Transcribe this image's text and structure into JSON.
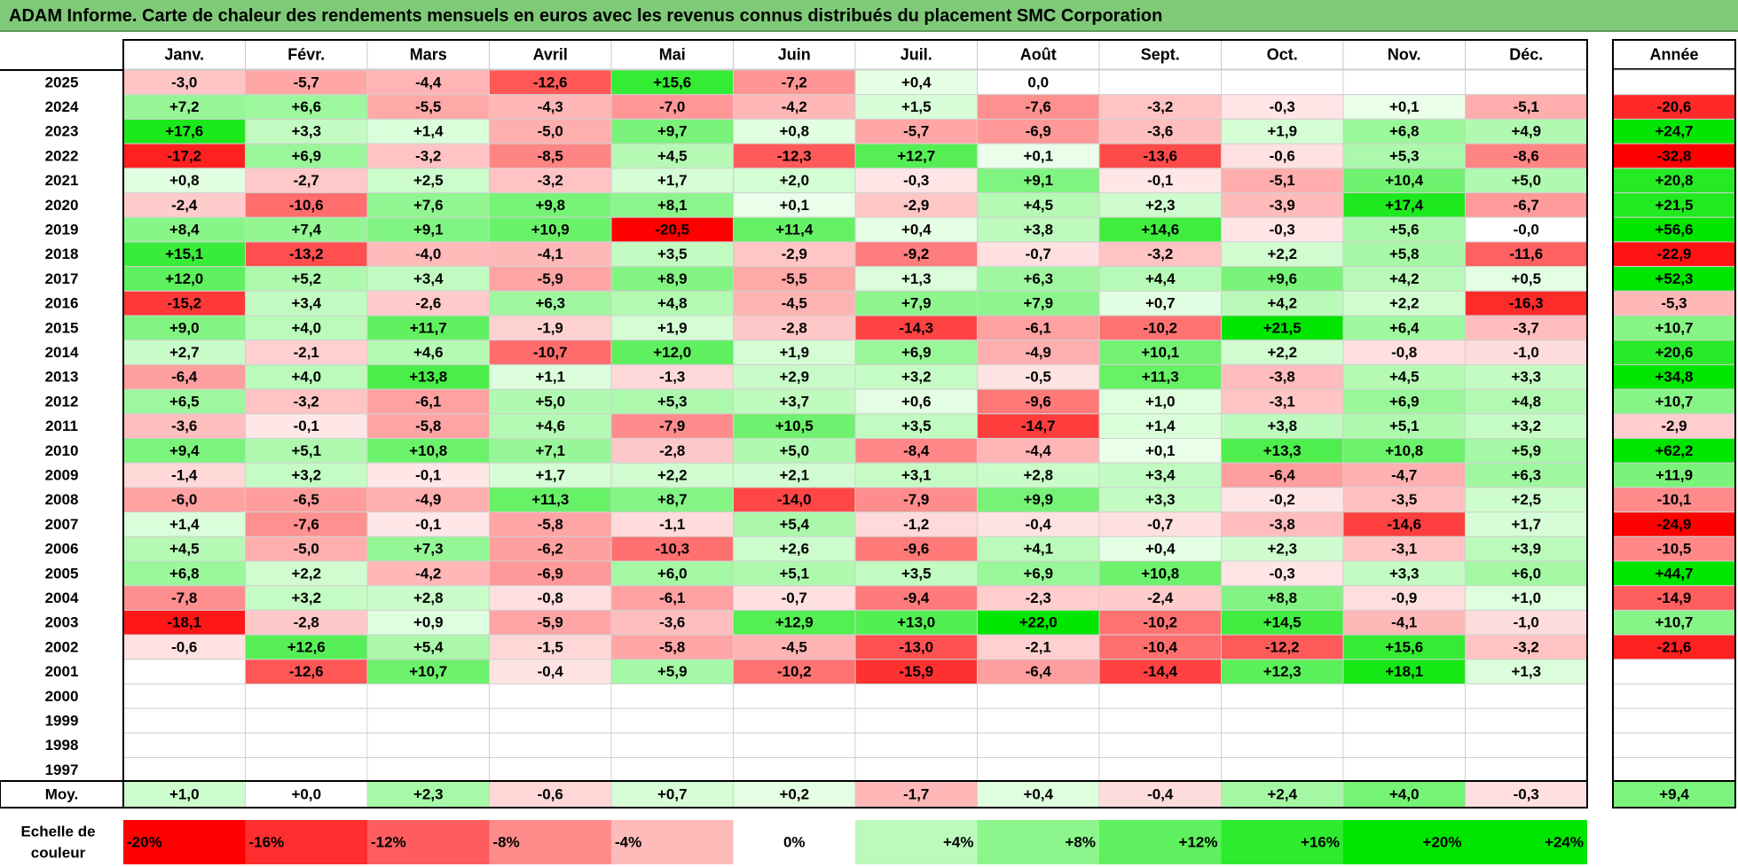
{
  "title": "ADAM Informe. Carte de chaleur des rendements mensuels en euros avec les revenus connus distribués du placement SMC Corporation",
  "year_header": "Année",
  "avg_label": "Moy.",
  "scale_label": "Echelle de couleur",
  "colors": {
    "neg_max": "#ff0000",
    "pos_max": "#00e600",
    "neutral": "#ffffff",
    "title_bg": "#7fca78"
  },
  "scale": [
    {
      "label": "-20%",
      "value": -20
    },
    {
      "label": "-16%",
      "value": -16
    },
    {
      "label": "-12%",
      "value": -12
    },
    {
      "label": "-8%",
      "value": -8
    },
    {
      "label": "-4%",
      "value": -4
    },
    {
      "label": "0%",
      "value": 0
    },
    {
      "label": "+4%",
      "value": 4
    },
    {
      "label": "+8%",
      "value": 8
    },
    {
      "label": "+12%",
      "value": 12
    },
    {
      "label": "+16%",
      "value": 16
    },
    {
      "label": "+20%",
      "value": 20
    },
    {
      "label": "+24%",
      "value": 24
    }
  ],
  "chart_data": {
    "type": "heatmap",
    "title": "ADAM Informe. Carte de chaleur des rendements mensuels en euros avec les revenus connus distribués du placement SMC Corporation",
    "months": [
      "Janv.",
      "Févr.",
      "Mars",
      "Avril",
      "Mai",
      "Juin",
      "Juil.",
      "Août",
      "Sept.",
      "Oct.",
      "Nov.",
      "Déc."
    ],
    "rows": [
      {
        "year": "2025",
        "values": [
          "-3,0",
          "-5,7",
          "-4,4",
          "-12,6",
          "+15,6",
          "-7,2",
          "+0,4",
          "0,0",
          "",
          "",
          "",
          ""
        ],
        "annual": ""
      },
      {
        "year": "2024",
        "values": [
          "+7,2",
          "+6,6",
          "-5,5",
          "-4,3",
          "-7,0",
          "-4,2",
          "+1,5",
          "-7,6",
          "-3,2",
          "-0,3",
          "+0,1",
          "-5,1"
        ],
        "annual": "-20,6"
      },
      {
        "year": "2023",
        "values": [
          "+17,6",
          "+3,3",
          "+1,4",
          "-5,0",
          "+9,7",
          "+0,8",
          "-5,7",
          "-6,9",
          "-3,6",
          "+1,9",
          "+6,8",
          "+4,9"
        ],
        "annual": "+24,7"
      },
      {
        "year": "2022",
        "values": [
          "-17,2",
          "+6,9",
          "-3,2",
          "-8,5",
          "+4,5",
          "-12,3",
          "+12,7",
          "+0,1",
          "-13,6",
          "-0,6",
          "+5,3",
          "-8,6"
        ],
        "annual": "-32,8"
      },
      {
        "year": "2021",
        "values": [
          "+0,8",
          "-2,7",
          "+2,5",
          "-3,2",
          "+1,7",
          "+2,0",
          "-0,3",
          "+9,1",
          "-0,1",
          "-5,1",
          "+10,4",
          "+5,0"
        ],
        "annual": "+20,8"
      },
      {
        "year": "2020",
        "values": [
          "-2,4",
          "-10,6",
          "+7,6",
          "+9,8",
          "+8,1",
          "+0,1",
          "-2,9",
          "+4,5",
          "+2,3",
          "-3,9",
          "+17,4",
          "-6,7"
        ],
        "annual": "+21,5"
      },
      {
        "year": "2019",
        "values": [
          "+8,4",
          "+7,4",
          "+9,1",
          "+10,9",
          "-20,5",
          "+11,4",
          "+0,4",
          "+3,8",
          "+14,6",
          "-0,3",
          "+5,6",
          "-0,0"
        ],
        "annual": "+56,6"
      },
      {
        "year": "2018",
        "values": [
          "+15,1",
          "-13,2",
          "-4,0",
          "-4,1",
          "+3,5",
          "-2,9",
          "-9,2",
          "-0,7",
          "-3,2",
          "+2,2",
          "+5,8",
          "-11,6"
        ],
        "annual": "-22,9"
      },
      {
        "year": "2017",
        "values": [
          "+12,0",
          "+5,2",
          "+3,4",
          "-5,9",
          "+8,9",
          "-5,5",
          "+1,3",
          "+6,3",
          "+4,4",
          "+9,6",
          "+4,2",
          "+0,5"
        ],
        "annual": "+52,3"
      },
      {
        "year": "2016",
        "values": [
          "-15,2",
          "+3,4",
          "-2,6",
          "+6,3",
          "+4,8",
          "-4,5",
          "+7,9",
          "+7,9",
          "+0,7",
          "+4,2",
          "+2,2",
          "-16,3"
        ],
        "annual": "-5,3"
      },
      {
        "year": "2015",
        "values": [
          "+9,0",
          "+4,0",
          "+11,7",
          "-1,9",
          "+1,9",
          "-2,8",
          "-14,3",
          "-6,1",
          "-10,2",
          "+21,5",
          "+6,4",
          "-3,7"
        ],
        "annual": "+10,7"
      },
      {
        "year": "2014",
        "values": [
          "+2,7",
          "-2,1",
          "+4,6",
          "-10,7",
          "+12,0",
          "+1,9",
          "+6,9",
          "-4,9",
          "+10,1",
          "+2,2",
          "-0,8",
          "-1,0"
        ],
        "annual": "+20,6"
      },
      {
        "year": "2013",
        "values": [
          "-6,4",
          "+4,0",
          "+13,8",
          "+1,1",
          "-1,3",
          "+2,9",
          "+3,2",
          "-0,5",
          "+11,3",
          "-3,8",
          "+4,5",
          "+3,3"
        ],
        "annual": "+34,8"
      },
      {
        "year": "2012",
        "values": [
          "+6,5",
          "-3,2",
          "-6,1",
          "+5,0",
          "+5,3",
          "+3,7",
          "+0,6",
          "-9,6",
          "+1,0",
          "-3,1",
          "+6,9",
          "+4,8"
        ],
        "annual": "+10,7"
      },
      {
        "year": "2011",
        "values": [
          "-3,6",
          "-0,1",
          "-5,8",
          "+4,6",
          "-7,9",
          "+10,5",
          "+3,5",
          "-14,7",
          "+1,4",
          "+3,8",
          "+5,1",
          "+3,2"
        ],
        "annual": "-2,9"
      },
      {
        "year": "2010",
        "values": [
          "+9,4",
          "+5,1",
          "+10,8",
          "+7,1",
          "-2,8",
          "+5,0",
          "-8,4",
          "-4,4",
          "+0,1",
          "+13,3",
          "+10,8",
          "+5,9"
        ],
        "annual": "+62,2"
      },
      {
        "year": "2009",
        "values": [
          "-1,4",
          "+3,2",
          "-0,1",
          "+1,7",
          "+2,2",
          "+2,1",
          "+3,1",
          "+2,8",
          "+3,4",
          "-6,4",
          "-4,7",
          "+6,3"
        ],
        "annual": "+11,9"
      },
      {
        "year": "2008",
        "values": [
          "-6,0",
          "-6,5",
          "-4,9",
          "+11,3",
          "+8,7",
          "-14,0",
          "-7,9",
          "+9,9",
          "+3,3",
          "-0,2",
          "-3,5",
          "+2,5"
        ],
        "annual": "-10,1"
      },
      {
        "year": "2007",
        "values": [
          "+1,4",
          "-7,6",
          "-0,1",
          "-5,8",
          "-1,1",
          "+5,4",
          "-1,2",
          "-0,4",
          "-0,7",
          "-3,8",
          "-14,6",
          "+1,7"
        ],
        "annual": "-24,9"
      },
      {
        "year": "2006",
        "values": [
          "+4,5",
          "-5,0",
          "+7,3",
          "-6,2",
          "-10,3",
          "+2,6",
          "-9,6",
          "+4,1",
          "+0,4",
          "+2,3",
          "-3,1",
          "+3,9"
        ],
        "annual": "-10,5"
      },
      {
        "year": "2005",
        "values": [
          "+6,8",
          "+2,2",
          "-4,2",
          "-6,9",
          "+6,0",
          "+5,1",
          "+3,5",
          "+6,9",
          "+10,8",
          "-0,3",
          "+3,3",
          "+6,0"
        ],
        "annual": "+44,7"
      },
      {
        "year": "2004",
        "values": [
          "-7,8",
          "+3,2",
          "+2,8",
          "-0,8",
          "-6,1",
          "-0,7",
          "-9,4",
          "-2,3",
          "-2,4",
          "+8,8",
          "-0,9",
          "+1,0"
        ],
        "annual": "-14,9"
      },
      {
        "year": "2003",
        "values": [
          "-18,1",
          "-2,8",
          "+0,9",
          "-5,9",
          "-3,6",
          "+12,9",
          "+13,0",
          "+22,0",
          "-10,2",
          "+14,5",
          "-4,1",
          "-1,0"
        ],
        "annual": "+10,7"
      },
      {
        "year": "2002",
        "values": [
          "-0,6",
          "+12,6",
          "+5,4",
          "-1,5",
          "-5,8",
          "-4,5",
          "-13,0",
          "-2,1",
          "-10,4",
          "-12,2",
          "+15,6",
          "-3,2"
        ],
        "annual": "-21,6"
      },
      {
        "year": "2001",
        "values": [
          "",
          "-12,6",
          "+10,7",
          "-0,4",
          "+5,9",
          "-10,2",
          "-15,9",
          "-6,4",
          "-14,4",
          "+12,3",
          "+18,1",
          "+1,3"
        ],
        "annual": ""
      },
      {
        "year": "2000",
        "values": [
          "",
          "",
          "",
          "",
          "",
          "",
          "",
          "",
          "",
          "",
          "",
          ""
        ],
        "annual": ""
      },
      {
        "year": "1999",
        "values": [
          "",
          "",
          "",
          "",
          "",
          "",
          "",
          "",
          "",
          "",
          "",
          ""
        ],
        "annual": ""
      },
      {
        "year": "1998",
        "values": [
          "",
          "",
          "",
          "",
          "",
          "",
          "",
          "",
          "",
          "",
          "",
          ""
        ],
        "annual": ""
      },
      {
        "year": "1997",
        "values": [
          "",
          "",
          "",
          "",
          "",
          "",
          "",
          "",
          "",
          "",
          "",
          ""
        ],
        "annual": ""
      }
    ],
    "averages": [
      "+1,0",
      "+0,0",
      "+2,3",
      "-0,6",
      "+0,7",
      "+0,2",
      "-1,7",
      "+0,4",
      "-0,4",
      "+2,4",
      "+4,0",
      "-0,3"
    ],
    "average_annual": "+9,4"
  }
}
